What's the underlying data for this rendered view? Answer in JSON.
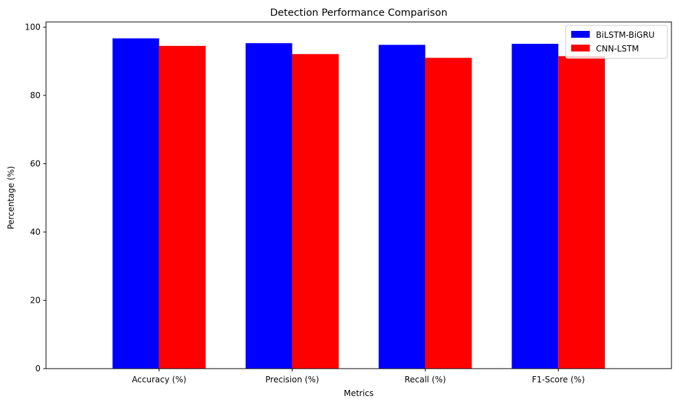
{
  "chart_data": {
    "type": "bar",
    "title": "Detection Performance Comparison",
    "xlabel": "Metrics",
    "ylabel": "Percentage (%)",
    "categories": [
      "Accuracy (%)",
      "Precision (%)",
      "Recall (%)",
      "F1-Score (%)"
    ],
    "series": [
      {
        "name": "BiLSTM-BiGRU",
        "color": "#0000ff",
        "values": [
          96.7,
          95.3,
          94.8,
          95.1
        ]
      },
      {
        "name": "CNN-LSTM",
        "color": "#ff0000",
        "values": [
          94.5,
          92.1,
          91.0,
          91.5
        ]
      }
    ],
    "ylim": [
      0,
      101.5
    ],
    "yticks": [
      0,
      20,
      40,
      60,
      80,
      100
    ],
    "grid": false,
    "legend": "upper right"
  }
}
